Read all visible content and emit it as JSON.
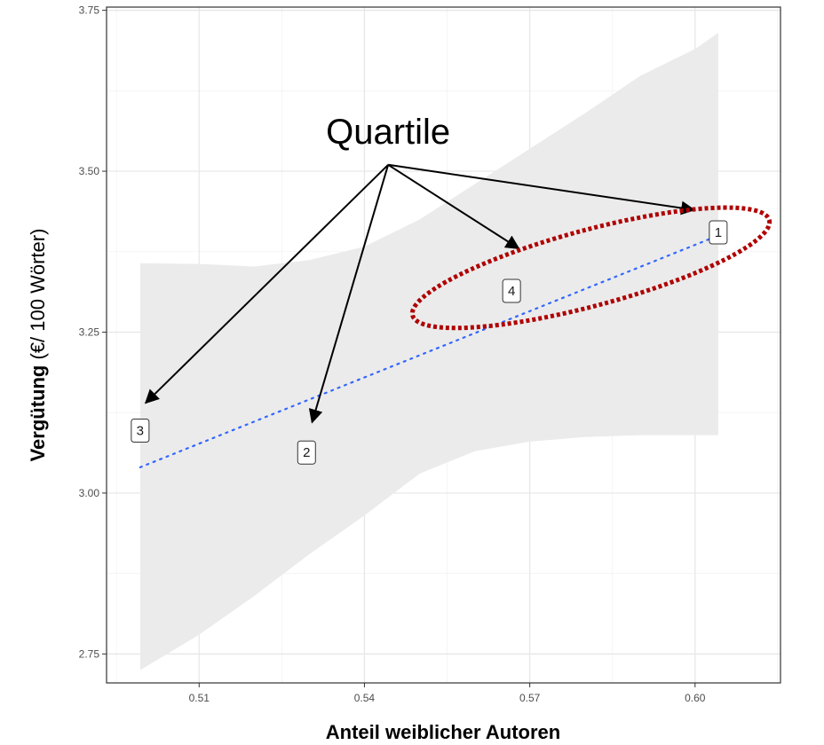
{
  "chart_data": {
    "type": "scatter",
    "xlabel": "Anteil weiblicher Autoren",
    "ylabel_bold": "Vergütung",
    "ylabel_rest": " (€/ 100 Wörter)",
    "xlim": [
      0.4932,
      0.6155
    ],
    "ylim": [
      2.705,
      3.755
    ],
    "x_ticks": [
      0.51,
      0.54,
      0.57,
      0.6
    ],
    "x_tick_labels": [
      "0.51",
      "0.54",
      "0.57",
      "0.60"
    ],
    "y_ticks": [
      2.75,
      3.0,
      3.25,
      3.5,
      3.75
    ],
    "y_tick_labels": [
      "2.75",
      "3.00",
      "3.25",
      "3.50",
      "3.75"
    ],
    "grid": true,
    "points": [
      {
        "label": "1",
        "x": 0.6042,
        "y": 3.405
      },
      {
        "label": "2",
        "x": 0.5295,
        "y": 3.063
      },
      {
        "label": "3",
        "x": 0.4993,
        "y": 3.097
      },
      {
        "label": "4",
        "x": 0.5667,
        "y": 3.314
      }
    ],
    "regression_line": {
      "x": [
        0.4993,
        0.6042
      ],
      "y": [
        3.04,
        3.4
      ],
      "color": "#3366ff",
      "style": "dotted"
    },
    "confidence_band": {
      "x": [
        0.4993,
        0.51,
        0.52,
        0.53,
        0.54,
        0.55,
        0.56,
        0.57,
        0.58,
        0.59,
        0.6,
        0.6042
      ],
      "upper": [
        3.357,
        3.356,
        3.352,
        3.362,
        3.383,
        3.425,
        3.48,
        3.535,
        3.59,
        3.648,
        3.69,
        3.715
      ],
      "lower": [
        2.725,
        2.78,
        2.84,
        2.905,
        2.965,
        3.03,
        3.065,
        3.08,
        3.087,
        3.09,
        3.09,
        3.09
      ],
      "color": "#ebebeb"
    },
    "annotations": {
      "title": "Quartile",
      "arrow_origin": {
        "x": 0.5443,
        "y": 3.51
      },
      "arrow_targets": [
        {
          "label": "3",
          "x": 0.5003,
          "y": 3.14
        },
        {
          "label": "2",
          "x": 0.5305,
          "y": 3.11
        },
        {
          "label": "4",
          "x": 0.568,
          "y": 3.38
        },
        {
          "label": "1",
          "x": 0.5998,
          "y": 3.44
        }
      ],
      "highlight_ellipse": {
        "cx": 0.5811,
        "cy": 3.35,
        "rx_x": 0.0335,
        "ry_y": 0.059,
        "angle_deg": -15,
        "color": "#b00000"
      }
    }
  }
}
